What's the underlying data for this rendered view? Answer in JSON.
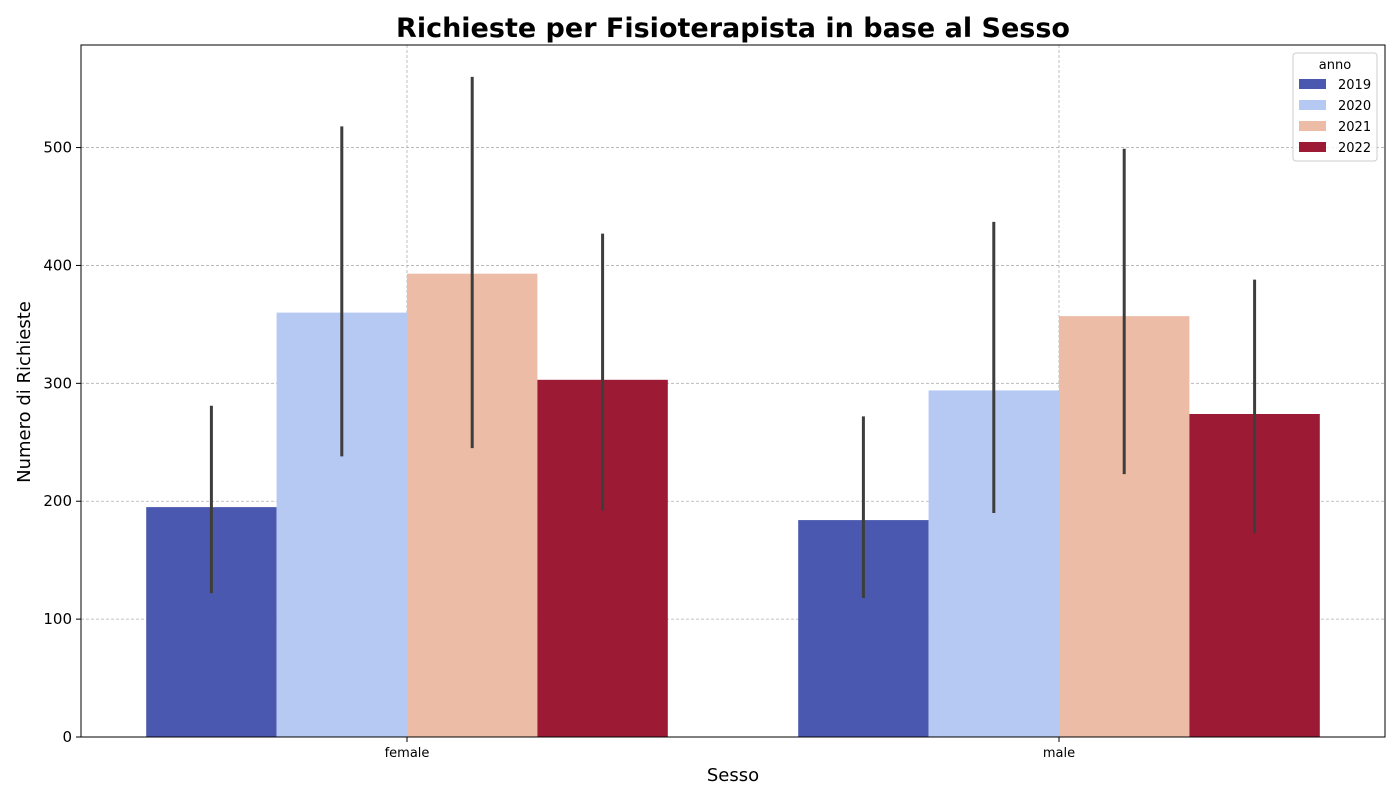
{
  "chart_data": {
    "type": "bar",
    "title": "Richieste per Fisioterapista in base al Sesso",
    "xlabel": "Sesso",
    "ylabel": "Numero di Richieste",
    "categories": [
      "female",
      "male"
    ],
    "ylim": [
      0,
      587
    ],
    "yticks": [
      0,
      100,
      200,
      300,
      400,
      500
    ],
    "grid": true,
    "legend": {
      "title": "anno",
      "placement": "top-right"
    },
    "series": [
      {
        "name": "2019",
        "color": "#4b58af",
        "values": [
          195,
          184
        ],
        "error_low": [
          122,
          118
        ],
        "error_high": [
          281,
          272
        ]
      },
      {
        "name": "2020",
        "color": "#b5c9f2",
        "values": [
          360,
          294
        ],
        "error_low": [
          238,
          190
        ],
        "error_high": [
          518,
          437
        ]
      },
      {
        "name": "2021",
        "color": "#ecbca6",
        "values": [
          393,
          357
        ],
        "error_low": [
          245,
          223
        ],
        "error_high": [
          560,
          499
        ]
      },
      {
        "name": "2022",
        "color": "#9d1a34",
        "values": [
          303,
          274
        ],
        "error_low": [
          192,
          173
        ],
        "error_high": [
          427,
          388
        ]
      }
    ]
  }
}
